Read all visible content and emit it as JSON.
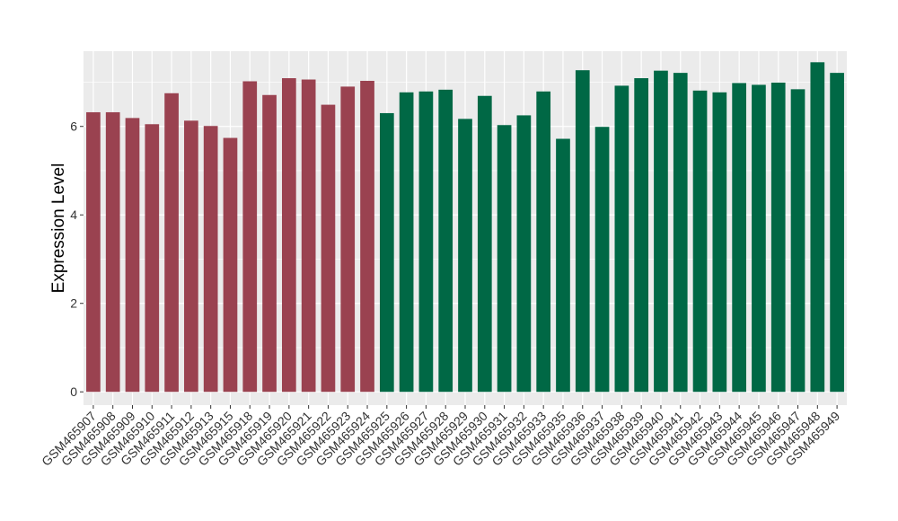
{
  "chart_data": {
    "type": "bar",
    "title": "",
    "xlabel": "",
    "ylabel": "Expression Level",
    "ylim": [
      -0.3,
      7.7
    ],
    "yticks": [
      0,
      2,
      4,
      6
    ],
    "grid": true,
    "legend": "none",
    "colors": {
      "group_a": "#9a4250",
      "group_b": "#006845",
      "panel_bg": "#ebebeb",
      "grid": "#ffffff"
    },
    "categories": [
      "GSM465907",
      "GSM465908",
      "GSM465909",
      "GSM465910",
      "GSM465911",
      "GSM465912",
      "GSM465913",
      "GSM465915",
      "GSM465918",
      "GSM465919",
      "GSM465920",
      "GSM465921",
      "GSM465922",
      "GSM465923",
      "GSM465924",
      "GSM465925",
      "GSM465926",
      "GSM465927",
      "GSM465928",
      "GSM465929",
      "GSM465930",
      "GSM465931",
      "GSM465932",
      "GSM465933",
      "GSM465935",
      "GSM465936",
      "GSM465937",
      "GSM465938",
      "GSM465939",
      "GSM465940",
      "GSM465941",
      "GSM465942",
      "GSM465943",
      "GSM465944",
      "GSM465945",
      "GSM465946",
      "GSM465947",
      "GSM465948",
      "GSM465949"
    ],
    "values": [
      6.32,
      6.32,
      6.19,
      6.05,
      6.75,
      6.13,
      6.01,
      5.74,
      7.02,
      6.71,
      7.09,
      7.06,
      6.49,
      6.9,
      7.03,
      6.3,
      6.77,
      6.79,
      6.83,
      6.17,
      6.69,
      6.03,
      6.25,
      6.79,
      5.72,
      7.27,
      5.99,
      6.92,
      7.09,
      7.26,
      7.21,
      6.81,
      6.77,
      6.98,
      6.94,
      6.99,
      6.84,
      7.45,
      7.21
    ],
    "groups": [
      "a",
      "a",
      "a",
      "a",
      "a",
      "a",
      "a",
      "a",
      "a",
      "a",
      "a",
      "a",
      "a",
      "a",
      "a",
      "b",
      "b",
      "b",
      "b",
      "b",
      "b",
      "b",
      "b",
      "b",
      "b",
      "b",
      "b",
      "b",
      "b",
      "b",
      "b",
      "b",
      "b",
      "b",
      "b",
      "b",
      "b",
      "b",
      "b"
    ]
  }
}
